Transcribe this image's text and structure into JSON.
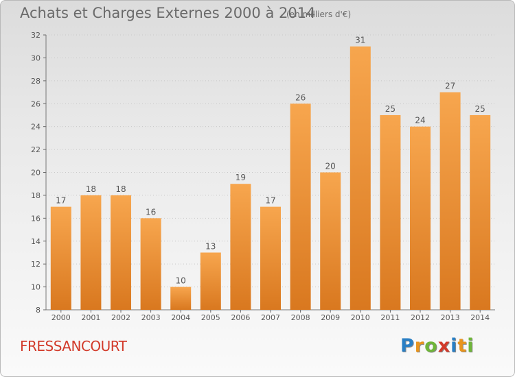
{
  "title": "Achats et Charges Externes 2000 à 2014",
  "unit": "(en milliers d'€)",
  "commune": "FRESSANCOURT",
  "logo": {
    "text": "Proxiti",
    "letters": [
      {
        "ch": "P",
        "color": "#2a7fc4"
      },
      {
        "ch": "r",
        "color": "#e8941e"
      },
      {
        "ch": "o",
        "color": "#6fb53a"
      },
      {
        "ch": "x",
        "color": "#d23a2a"
      },
      {
        "ch": "i",
        "color": "#2a7fc4"
      },
      {
        "ch": "t",
        "color": "#e8941e"
      },
      {
        "ch": "i",
        "color": "#6fb53a"
      }
    ]
  },
  "chart_data": {
    "type": "bar",
    "categories": [
      "2000",
      "2001",
      "2002",
      "2003",
      "2004",
      "2005",
      "2006",
      "2007",
      "2008",
      "2009",
      "2010",
      "2011",
      "2012",
      "2013",
      "2014"
    ],
    "values": [
      17,
      18,
      18,
      16,
      10,
      13,
      19,
      17,
      26,
      20,
      31,
      25,
      24,
      27,
      25
    ],
    "ylim": [
      8,
      32
    ],
    "yticks": [
      8,
      10,
      12,
      14,
      16,
      18,
      20,
      22,
      24,
      26,
      28,
      30,
      32
    ],
    "grid": true,
    "bar_color_light": "#f7a64e",
    "bar_color_dark": "#d9781f"
  }
}
